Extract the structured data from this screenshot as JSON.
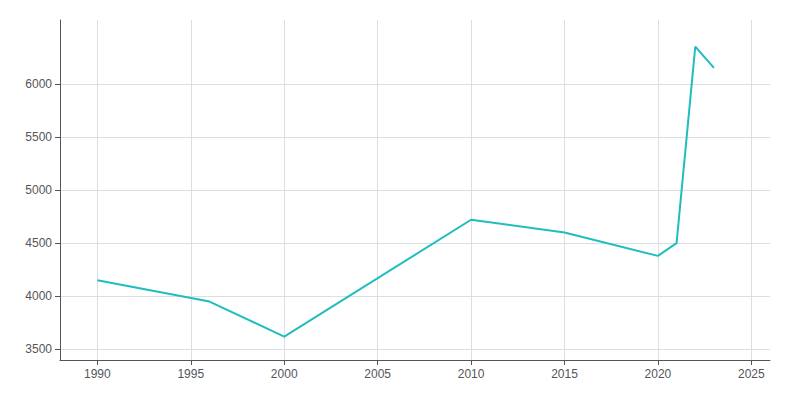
{
  "chart_data": {
    "type": "line",
    "x": [
      1990,
      1996,
      2000,
      2010,
      2015,
      2020,
      2021,
      2022,
      2023
    ],
    "values": [
      4150,
      3950,
      3620,
      4720,
      4600,
      4380,
      4500,
      6350,
      6150
    ],
    "color": "#20BDBE",
    "xlim": [
      1988,
      2026
    ],
    "ylim": [
      3400,
      6600
    ],
    "xticks": [
      1990,
      1995,
      2000,
      2005,
      2010,
      2015,
      2020,
      2025
    ],
    "yticks": [
      3500,
      4000,
      4500,
      5000,
      5500,
      6000
    ],
    "grid": true
  }
}
